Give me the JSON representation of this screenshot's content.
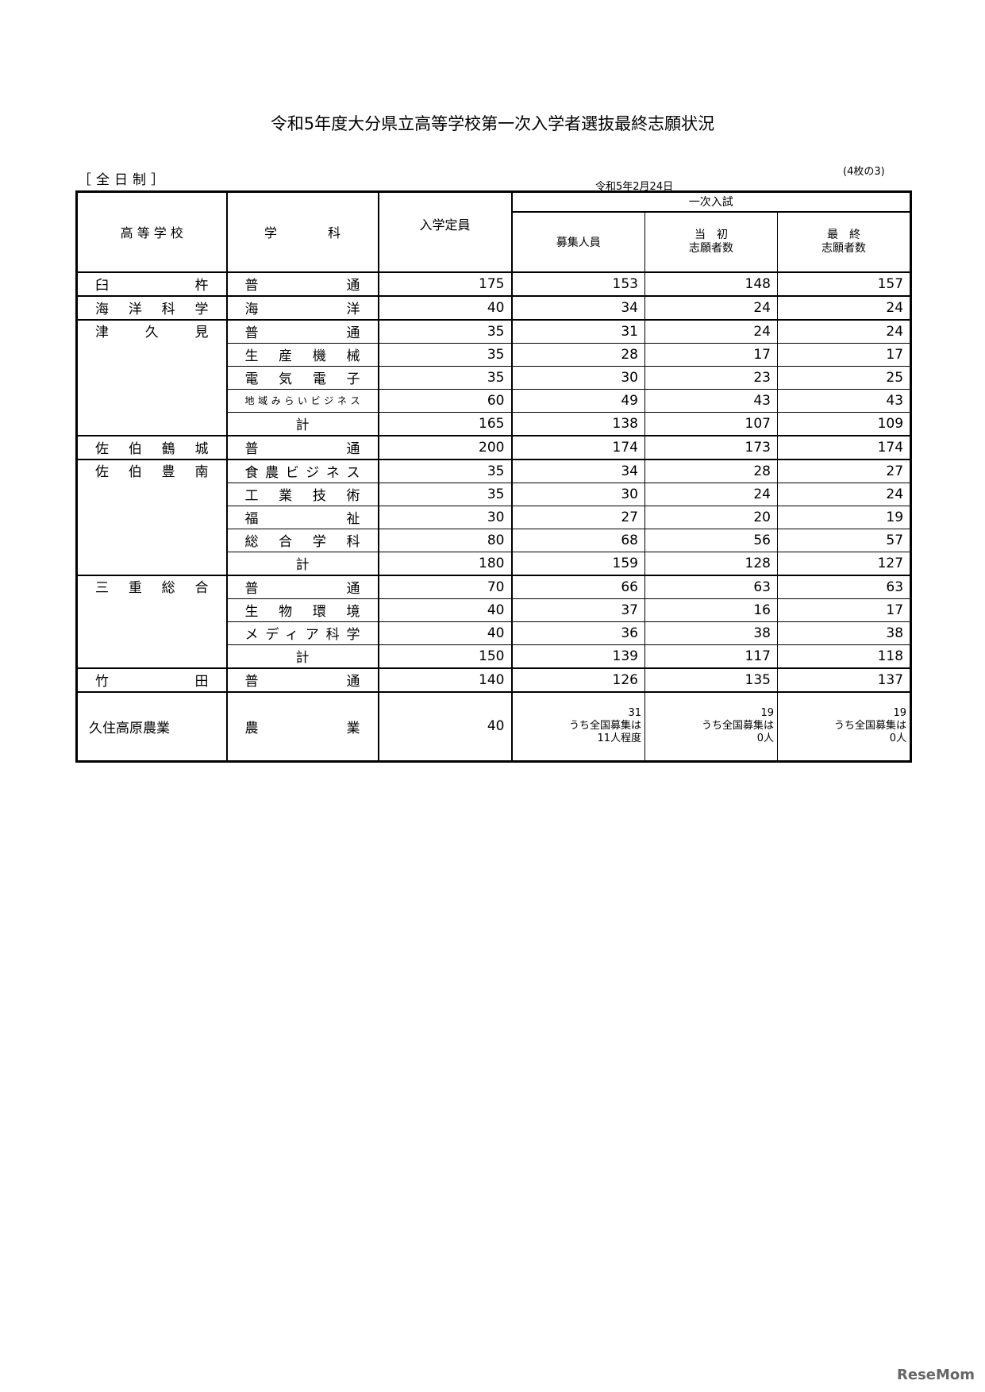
{
  "title": "令和5年度大分県立高等学校第一次入学者選抜最終志願状況",
  "page_no": "(4枚の3)",
  "category": "［全日制］",
  "date": "令和5年2月24日",
  "watermark": "ReseMom",
  "headers": {
    "school": "高 等 学 校",
    "dept": "学　　　　科",
    "capacity": "入学定員",
    "group": "一次入試",
    "recruit": "募集人員",
    "initial": "当　初\n志願者数",
    "final": "最　終\n志願者数"
  },
  "groups": [
    {
      "school": "臼杵",
      "rows": [
        {
          "dept": "普通",
          "cap": "175",
          "rec": "153",
          "ini": "148",
          "fin": "157"
        }
      ]
    },
    {
      "school": "海洋科学",
      "rows": [
        {
          "dept": "海洋",
          "cap": "40",
          "rec": "34",
          "ini": "24",
          "fin": "24"
        }
      ]
    },
    {
      "school": "津久見",
      "rows": [
        {
          "dept": "普通",
          "cap": "35",
          "rec": "31",
          "ini": "24",
          "fin": "24"
        },
        {
          "dept": "生産機械",
          "cap": "35",
          "rec": "28",
          "ini": "17",
          "fin": "17"
        },
        {
          "dept": "電気電子",
          "cap": "35",
          "rec": "30",
          "ini": "23",
          "fin": "25"
        },
        {
          "dept": "地域みらいビジネス",
          "cap": "60",
          "rec": "49",
          "ini": "43",
          "fin": "43",
          "small": true
        },
        {
          "dept": "計",
          "cap": "165",
          "rec": "138",
          "ini": "107",
          "fin": "109",
          "total": true
        }
      ]
    },
    {
      "school": "佐伯鶴城",
      "rows": [
        {
          "dept": "普通",
          "cap": "200",
          "rec": "174",
          "ini": "173",
          "fin": "174"
        }
      ]
    },
    {
      "school": "佐伯豊南",
      "rows": [
        {
          "dept": "食農ビジネス",
          "cap": "35",
          "rec": "34",
          "ini": "28",
          "fin": "27"
        },
        {
          "dept": "工業技術",
          "cap": "35",
          "rec": "30",
          "ini": "24",
          "fin": "24"
        },
        {
          "dept": "福祉",
          "cap": "30",
          "rec": "27",
          "ini": "20",
          "fin": "19"
        },
        {
          "dept": "総合学科",
          "cap": "80",
          "rec": "68",
          "ini": "56",
          "fin": "57"
        },
        {
          "dept": "計",
          "cap": "180",
          "rec": "159",
          "ini": "128",
          "fin": "127",
          "total": true
        }
      ]
    },
    {
      "school": "三重総合",
      "rows": [
        {
          "dept": "普通",
          "cap": "70",
          "rec": "66",
          "ini": "63",
          "fin": "63"
        },
        {
          "dept": "生物環境",
          "cap": "40",
          "rec": "37",
          "ini": "16",
          "fin": "17"
        },
        {
          "dept": "メディア科学",
          "cap": "40",
          "rec": "36",
          "ini": "38",
          "fin": "38"
        },
        {
          "dept": "計",
          "cap": "150",
          "rec": "139",
          "ini": "117",
          "fin": "118",
          "total": true
        }
      ]
    },
    {
      "school": "竹田",
      "rows": [
        {
          "dept": "普通",
          "cap": "140",
          "rec": "126",
          "ini": "135",
          "fin": "137"
        }
      ]
    },
    {
      "school": "久住高原農業",
      "rows": [
        {
          "dept": "農業",
          "cap": "40",
          "rec": "31\nうち全国募集は\n11人程度",
          "ini": "19\nうち全国募集は\n0人",
          "fin": "19\nうち全国募集は\n0人",
          "note": true
        }
      ]
    }
  ]
}
